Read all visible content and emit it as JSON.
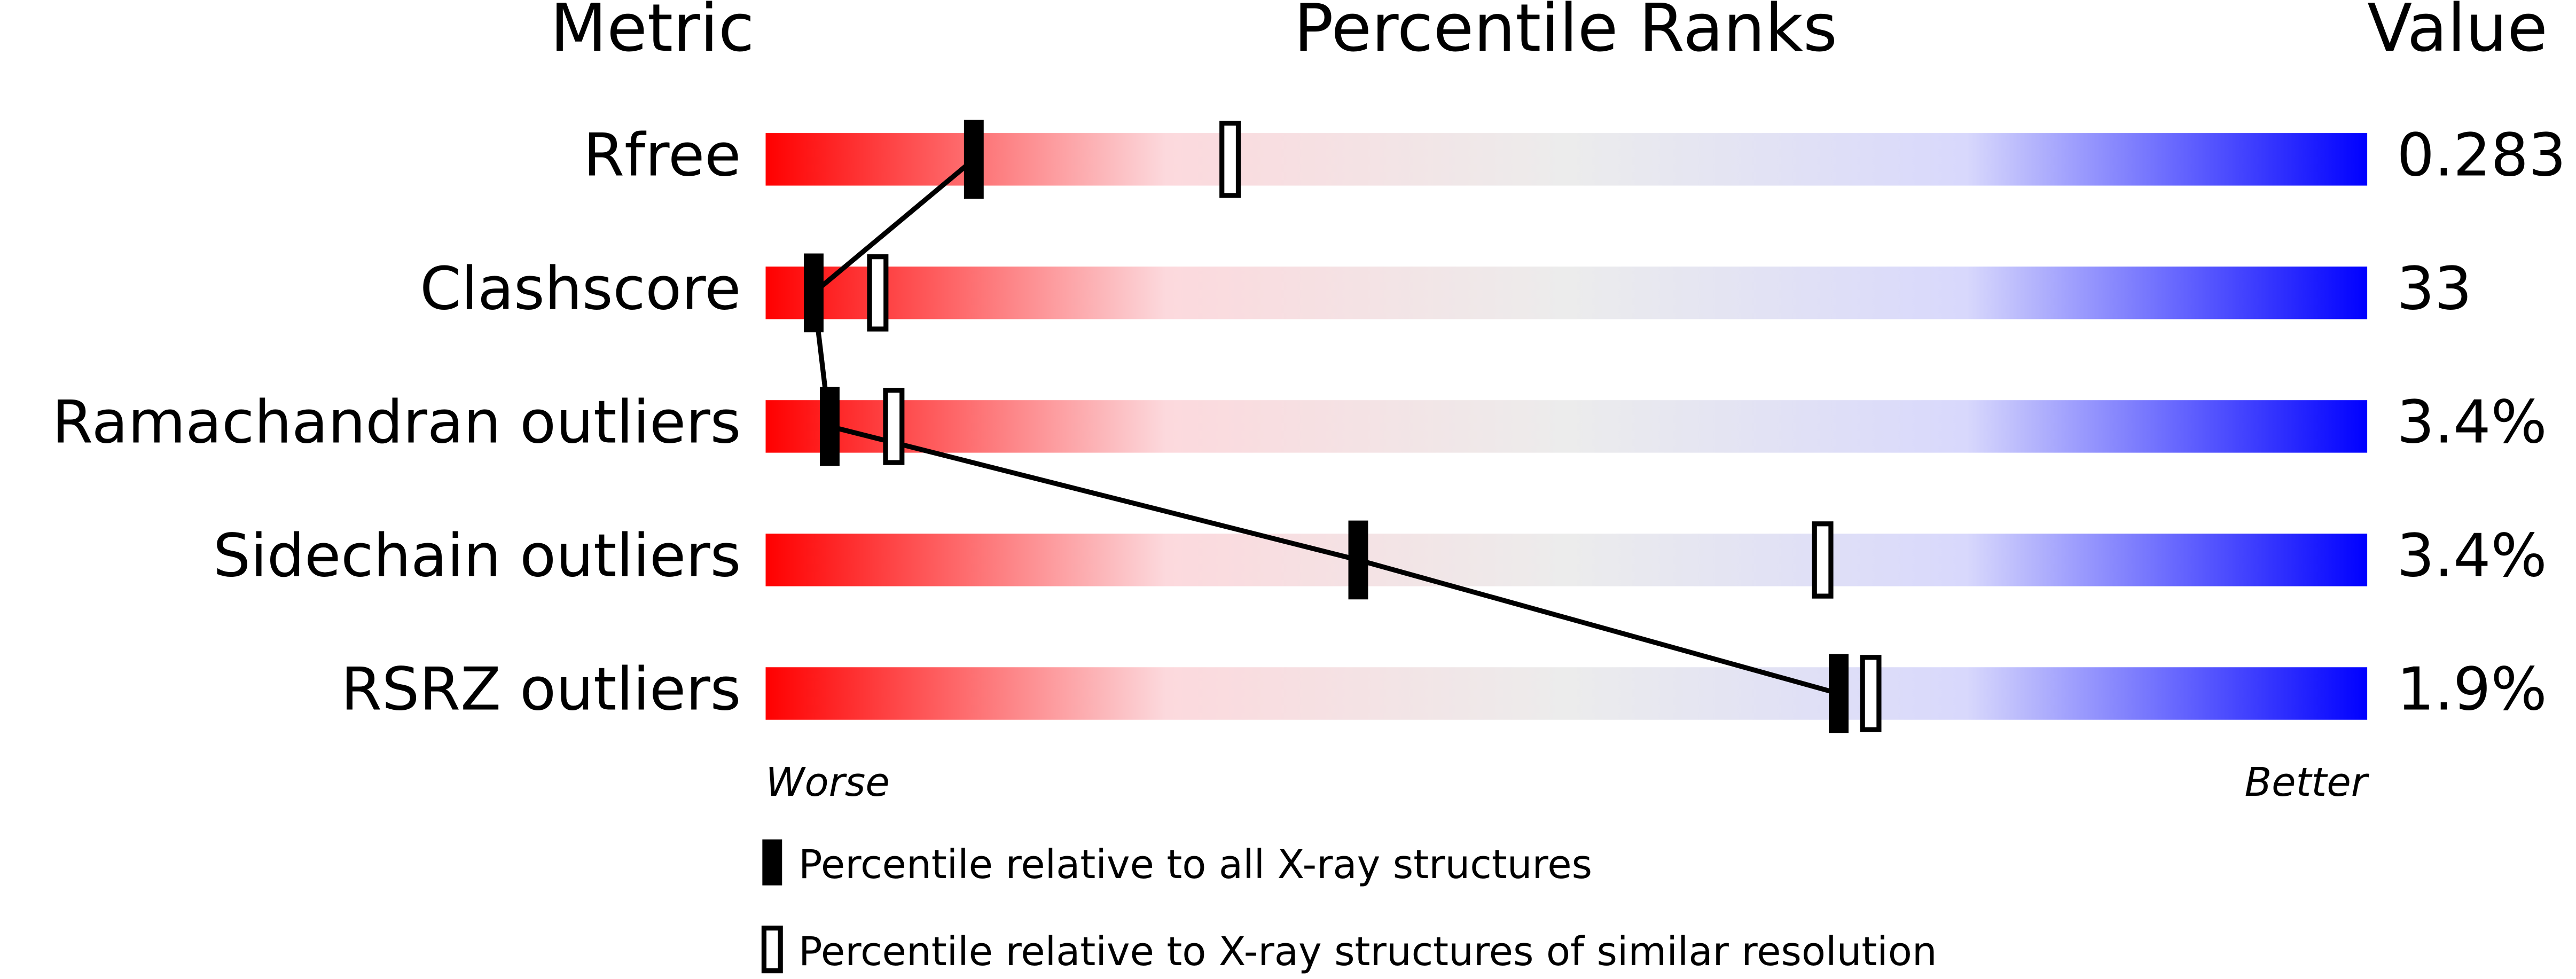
{
  "chart_data": {
    "type": "percentile-slider",
    "headers": {
      "metric": "Metric",
      "percentile": "Percentile Ranks",
      "value": "Value"
    },
    "categories": [
      "Rfree",
      "Clashscore",
      "Ramachandran outliers",
      "Sidechain outliers",
      "RSRZ outliers"
    ],
    "metric_values": [
      "0.283",
      "33",
      "3.4%",
      "3.4%",
      "1.9%"
    ],
    "series": [
      {
        "name": "Percentile relative to all X-ray structures",
        "color": "#000000",
        "style": "filled",
        "values": [
          13,
          3,
          4,
          37,
          67
        ]
      },
      {
        "name": "Percentile relative to X-ray structures of similar resolution",
        "color": "#000000",
        "style": "hollow",
        "values": [
          29,
          7,
          8,
          66,
          69
        ]
      }
    ],
    "xlim": [
      0,
      100
    ],
    "worse_label": "Worse",
    "better_label": "Better",
    "gradient": [
      "#ff0000",
      "#fcd9dd",
      "#ececec",
      "#d8d8fc",
      "#0000ff"
    ]
  }
}
